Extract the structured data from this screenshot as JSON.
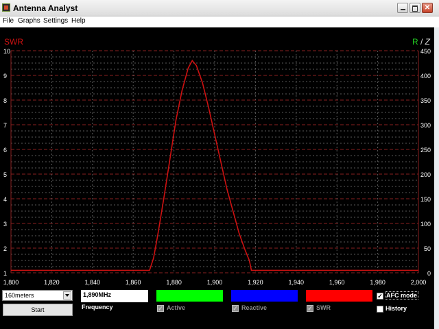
{
  "window": {
    "title": "Antenna Analyst",
    "min_label": "–",
    "max_label": "□",
    "close_label": "✕"
  },
  "menu": [
    "File",
    "Graphs",
    "Settings",
    "Help"
  ],
  "graph": {
    "left_label": "SWR",
    "right_label_r": "R",
    "right_label_sep": " / ",
    "right_label_z": "Z",
    "colors": {
      "background": "#000000",
      "swr": "#cc1111",
      "grid_major": "#8a1f1f",
      "grid_minor": "#5a5a5a",
      "axis_text": "#ffffff",
      "r_label": "#22cc22",
      "z_label": "#dddddd"
    }
  },
  "chart_data": {
    "type": "line",
    "title": "",
    "xlabel": "",
    "ylabel": "SWR",
    "ylabel_right": "R / Z",
    "xlim": [
      1.8,
      2.0
    ],
    "ylim": [
      1,
      10
    ],
    "ylim_right": [
      0,
      450
    ],
    "x_ticks": [
      "1,800",
      "1,820",
      "1,840",
      "1,860",
      "1,880",
      "1,900",
      "1,920",
      "1,940",
      "1,960",
      "1,980",
      "2,000"
    ],
    "y_ticks": [
      "10",
      "9",
      "8",
      "7",
      "6",
      "5",
      "4",
      "3",
      "2",
      "1"
    ],
    "y_ticks_right": [
      "450",
      "400",
      "350",
      "300",
      "250",
      "200",
      "150",
      "100",
      "50",
      "0"
    ],
    "series": [
      {
        "name": "SWR",
        "x": [
          1.8,
          1.868,
          1.87,
          1.872,
          1.875,
          1.878,
          1.881,
          1.884,
          1.887,
          1.889,
          1.891,
          1.894,
          1.897,
          1.9,
          1.903,
          1.906,
          1.909,
          1.912,
          1.915,
          1.917,
          1.918,
          2.0
        ],
        "values": [
          1.1,
          1.1,
          1.6,
          2.5,
          4.0,
          5.6,
          7.2,
          8.4,
          9.3,
          9.6,
          9.4,
          8.7,
          7.7,
          6.6,
          5.5,
          4.4,
          3.5,
          2.6,
          1.9,
          1.5,
          1.1,
          1.1
        ]
      }
    ]
  },
  "controls": {
    "band": "160meters",
    "start_label": "Start",
    "frequency_value": "1,890MHz",
    "frequency_label": "Frequency",
    "swatches": {
      "active_color": "#00ff00",
      "reactive_color": "#0000ff",
      "swr_color": "#ff0000"
    },
    "active_label": "Active",
    "reactive_label": "Reactive",
    "swr_label": "SWR",
    "check_mark": "✓",
    "afc_label": "AFC mode",
    "history_label": "History"
  }
}
